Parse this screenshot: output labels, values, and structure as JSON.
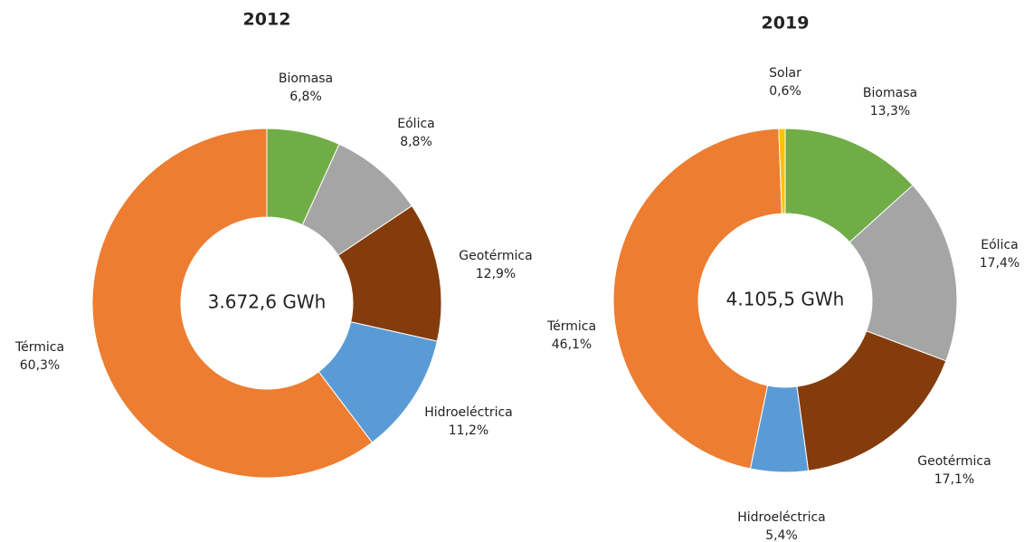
{
  "chart_data": [
    {
      "type": "pie",
      "title": "2012",
      "center_label": "3.672,6 GWh",
      "categories": [
        "Biomasa",
        "Eólica",
        "Geotérmica",
        "Hidroeléctrica",
        "Térmica"
      ],
      "values": [
        6.8,
        8.8,
        12.9,
        11.2,
        60.3
      ],
      "value_labels": [
        "6,8%",
        "8,8%",
        "12,9%",
        "11,2%",
        "60,3%"
      ],
      "colors": [
        "#70ad47",
        "#a5a5a5",
        "#843c0c",
        "#5b9bd5",
        "#ed7d31"
      ]
    },
    {
      "type": "pie",
      "title": "2019",
      "center_label": "4.105,5 GWh",
      "categories": [
        "Biomasa",
        "Eólica",
        "Geotérmica",
        "Hidroeléctrica",
        "Térmica",
        "Solar"
      ],
      "values": [
        13.3,
        17.4,
        17.1,
        5.4,
        46.1,
        0.6
      ],
      "value_labels": [
        "13,3%",
        "17,4%",
        "17,1%",
        "5,4%",
        "46,1%",
        "0,6%"
      ],
      "colors": [
        "#70ad47",
        "#a5a5a5",
        "#843c0c",
        "#5b9bd5",
        "#ed7d31",
        "#ffc000"
      ]
    }
  ]
}
